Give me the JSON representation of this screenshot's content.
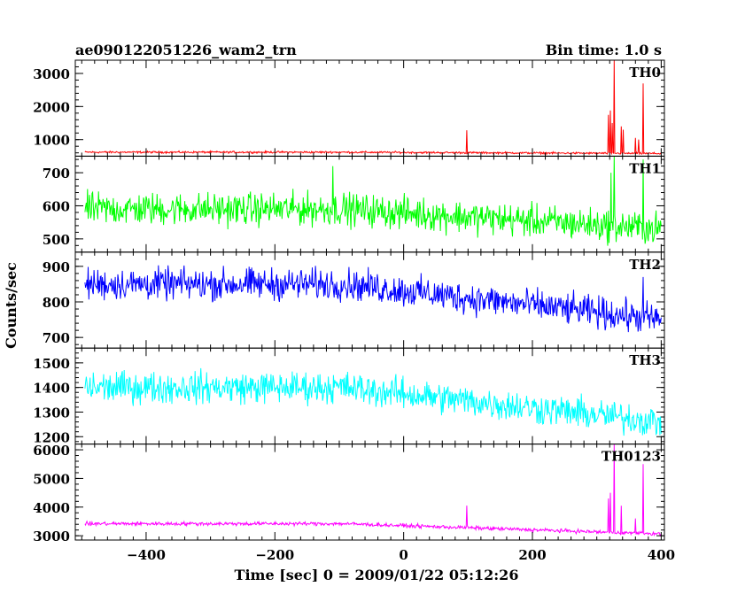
{
  "header": {
    "title": "ae090122051226_wam2_trn",
    "bin_time": "Bin time: 1.0 s"
  },
  "chart_data": {
    "type": "line",
    "title": "ae090122051226_wam2_trn",
    "subtitle": "Bin time: 1.0 s",
    "xlabel": "Time [sec] 0 = 2009/01/22 05:12:26",
    "ylabel": "Counts/sec",
    "xlim": [
      -510,
      405
    ],
    "xticks": [
      -400,
      -200,
      0,
      200,
      400
    ],
    "grid": false,
    "panels": [
      {
        "name": "TH0",
        "color": "#ff0000",
        "ylim": [
          500,
          3400
        ],
        "yticks": [
          1000,
          2000,
          3000
        ],
        "baseline": 620,
        "baseline_end": 580,
        "noise": 25,
        "spikes": [
          {
            "x": 98,
            "y": 1280
          },
          {
            "x": 318,
            "y": 1750
          },
          {
            "x": 321,
            "y": 1880
          },
          {
            "x": 324,
            "y": 1500
          },
          {
            "x": 327,
            "y": 3400
          },
          {
            "x": 338,
            "y": 1400
          },
          {
            "x": 341,
            "y": 1300
          },
          {
            "x": 360,
            "y": 1050
          },
          {
            "x": 365,
            "y": 1000
          },
          {
            "x": 372,
            "y": 2700
          }
        ]
      },
      {
        "name": "TH1",
        "color": "#00ff00",
        "ylim": [
          460,
          750
        ],
        "yticks": [
          500,
          600,
          700
        ],
        "baseline": 590,
        "baseline_end": 530,
        "noise": 42,
        "spikes": [
          {
            "x": -110,
            "y": 720
          },
          {
            "x": 322,
            "y": 700
          },
          {
            "x": 327,
            "y": 750
          },
          {
            "x": 372,
            "y": 740
          }
        ]
      },
      {
        "name": "TH2",
        "color": "#0000ff",
        "ylim": [
          670,
          940
        ],
        "yticks": [
          700,
          800,
          900
        ],
        "baseline": 850,
        "baseline_end": 750,
        "noise": 38,
        "spikes": [
          {
            "x": 372,
            "y": 870
          }
        ]
      },
      {
        "name": "TH3",
        "color": "#00ffff",
        "ylim": [
          1170,
          1560
        ],
        "yticks": [
          1200,
          1300,
          1400,
          1500
        ],
        "baseline": 1400,
        "baseline_end": 1260,
        "noise": 55,
        "spikes": []
      },
      {
        "name": "TH0123",
        "color": "#ff00ff",
        "ylim": [
          2850,
          6200
        ],
        "yticks": [
          3000,
          4000,
          5000,
          6000
        ],
        "baseline": 3420,
        "baseline_end": 3060,
        "noise": 55,
        "spikes": [
          {
            "x": 98,
            "y": 4050
          },
          {
            "x": 318,
            "y": 4300
          },
          {
            "x": 321,
            "y": 4500
          },
          {
            "x": 327,
            "y": 6200
          },
          {
            "x": 338,
            "y": 4050
          },
          {
            "x": 360,
            "y": 3600
          },
          {
            "x": 372,
            "y": 5500
          }
        ]
      }
    ]
  }
}
